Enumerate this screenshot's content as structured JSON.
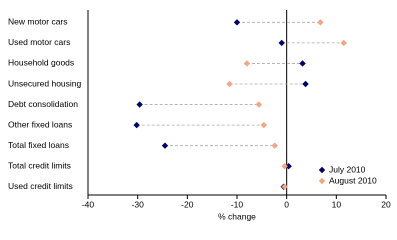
{
  "chart_data": {
    "type": "dot",
    "x_label": "% change",
    "categories": [
      "New motor cars",
      "Used motor cars",
      "Household goods",
      "Unsecured housing",
      "Debt consolidation",
      "Other fixed loans",
      "Total fixed loans",
      "Total credit limits",
      "Used credit limits"
    ],
    "series": [
      {
        "name": "July 2010",
        "color": "#00006e",
        "values": [
          -10,
          -1,
          3.2,
          3.8,
          -29.6,
          -30.2,
          -24.5,
          0.4,
          -0.6
        ]
      },
      {
        "name": "August 2010",
        "color": "#f4a582",
        "values": [
          6.8,
          11.5,
          -8,
          -11.5,
          -5.6,
          -4.6,
          -2.4,
          -0.4,
          -0.4
        ]
      }
    ],
    "xlim": [
      -40,
      20
    ],
    "xticks": [
      -40,
      -30,
      -20,
      -10,
      0,
      10,
      20
    ],
    "legend": "lower right"
  }
}
